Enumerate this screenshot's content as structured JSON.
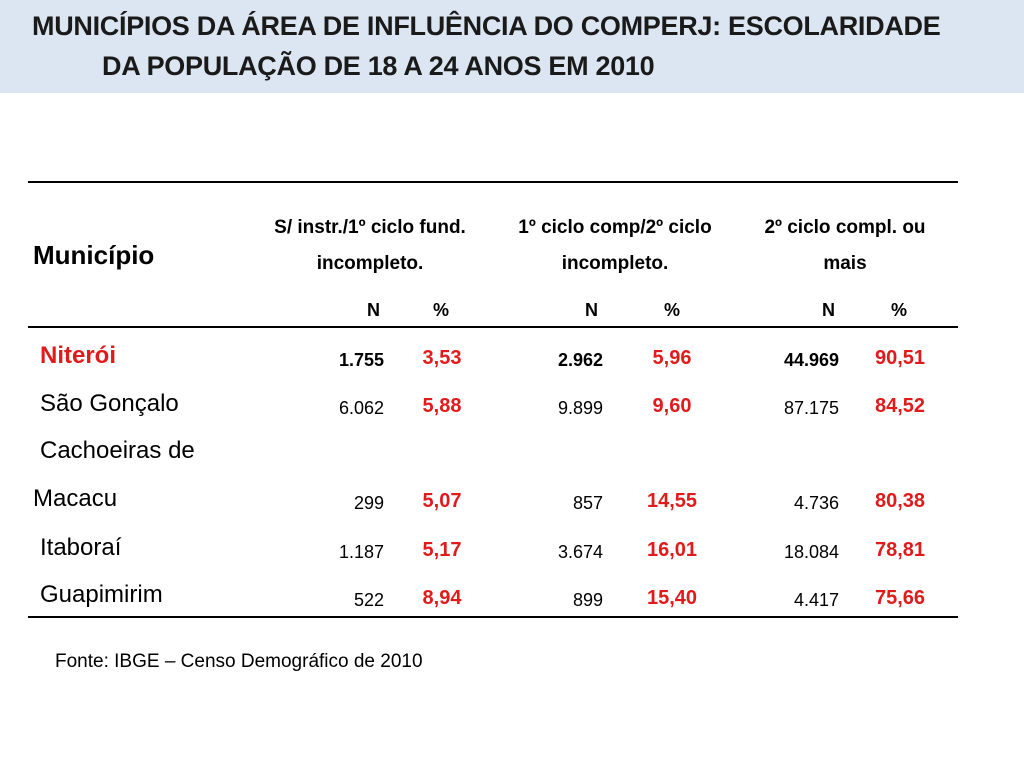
{
  "title": {
    "line1": "MUNICÍPIOS DA ÁREA DE INFLUÊNCIA DO COMPERJ: ESCOLARIDADE",
    "line2": "DA POPULAÇÃO DE 18 A 24 ANOS  EM 2010"
  },
  "table": {
    "municipio_header": "Município",
    "groups": [
      {
        "line1": "S/ instr./1º ciclo fund.",
        "line2": "incompleto."
      },
      {
        "line1": "1º ciclo comp/2º ciclo",
        "line2": "incompleto."
      },
      {
        "line1": "2º ciclo compl. ou",
        "line2": "mais"
      }
    ],
    "sub": {
      "n": "N",
      "pct": "%"
    },
    "rows": [
      {
        "name": "Niterói",
        "n1": "1.755",
        "p1": "3,53",
        "n2": "2.962",
        "p2": "5,96",
        "n3": "44.969",
        "p3": "90,51"
      },
      {
        "name": "São Gonçalo",
        "n1": "6.062",
        "p1": "5,88",
        "n2": "9.899",
        "p2": "9,60",
        "n3": "87.175",
        "p3": "84,52"
      },
      {
        "name_line1": "Cachoeiras de",
        "name_line2": "Macacu",
        "n1": "299",
        "p1": "5,07",
        "n2": "857",
        "p2": "14,55",
        "n3": "4.736",
        "p3": "80,38"
      },
      {
        "name": "Itaboraí",
        "n1": "1.187",
        "p1": "5,17",
        "n2": "3.674",
        "p2": "16,01",
        "n3": "18.084",
        "p3": "78,81"
      },
      {
        "name": "Guapimirim",
        "n1": "522",
        "p1": "8,94",
        "n2": "899",
        "p2": "15,40",
        "n3": "4.417",
        "p3": "75,66"
      }
    ]
  },
  "source": "Fonte:  IBGE – Censo Demográfico de 2010",
  "colors": {
    "band": "#dce6f2",
    "accent": "#e01b1b"
  }
}
